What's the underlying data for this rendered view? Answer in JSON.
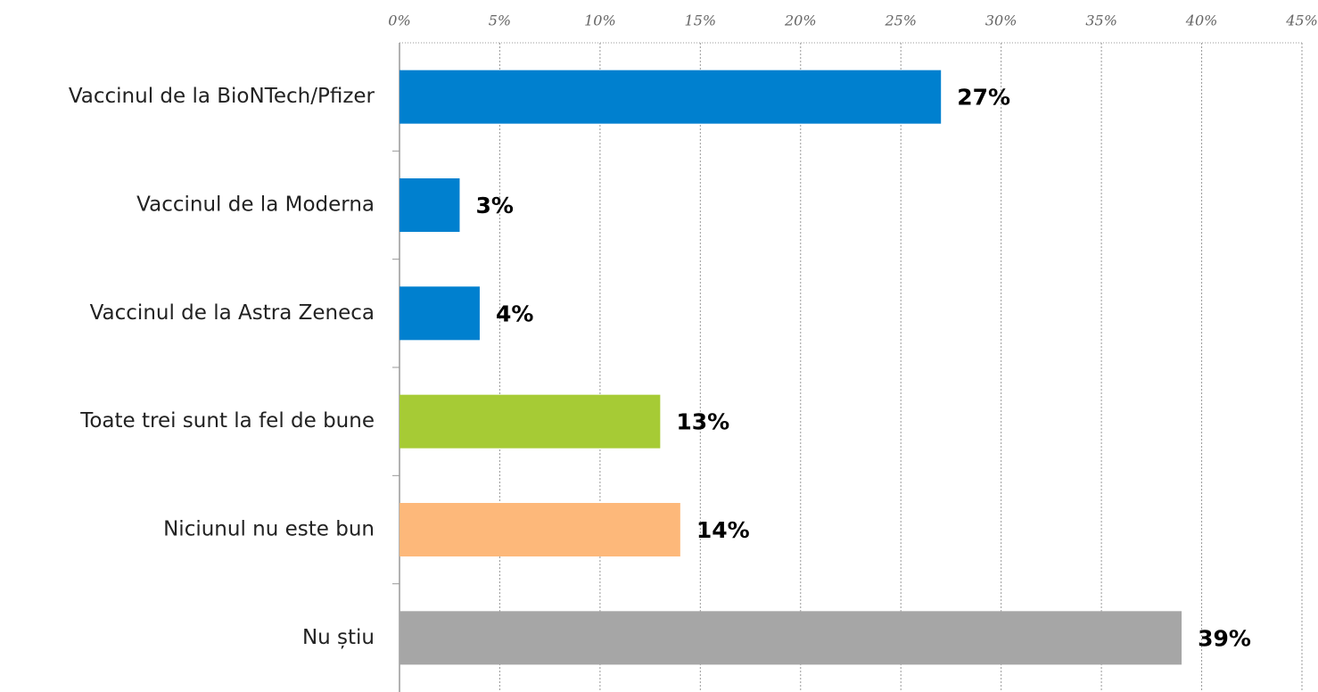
{
  "chart_data": {
    "type": "bar",
    "orientation": "horizontal",
    "categories": [
      "Vaccinul de la BioNTech/Pfizer",
      "Vaccinul de la Moderna",
      "Vaccinul de la Astra Zeneca",
      "Toate trei sunt la fel de bune",
      "Niciunul nu este bun",
      "Nu știu"
    ],
    "values": [
      27,
      3,
      4,
      13,
      14,
      39
    ],
    "value_labels": [
      "27%",
      "3%",
      "4%",
      "13%",
      "14%",
      "39%"
    ],
    "colors": [
      "#0080cf",
      "#0080cf",
      "#0080cf",
      "#a6cb35",
      "#fdb87a",
      "#a6a6a6"
    ],
    "xlim": [
      0,
      45
    ],
    "xticks": [
      {
        "value": 0,
        "label": "0%"
      },
      {
        "value": 5,
        "label": "5%"
      },
      {
        "value": 10,
        "label": "10%"
      },
      {
        "value": 15,
        "label": "15%"
      },
      {
        "value": 20,
        "label": "20%"
      },
      {
        "value": 25,
        "label": "25%"
      },
      {
        "value": 30,
        "label": "30%"
      },
      {
        "value": 35,
        "label": "35%"
      },
      {
        "value": 40,
        "label": "40%"
      },
      {
        "value": 45,
        "label": "45%"
      }
    ],
    "grid": true
  }
}
